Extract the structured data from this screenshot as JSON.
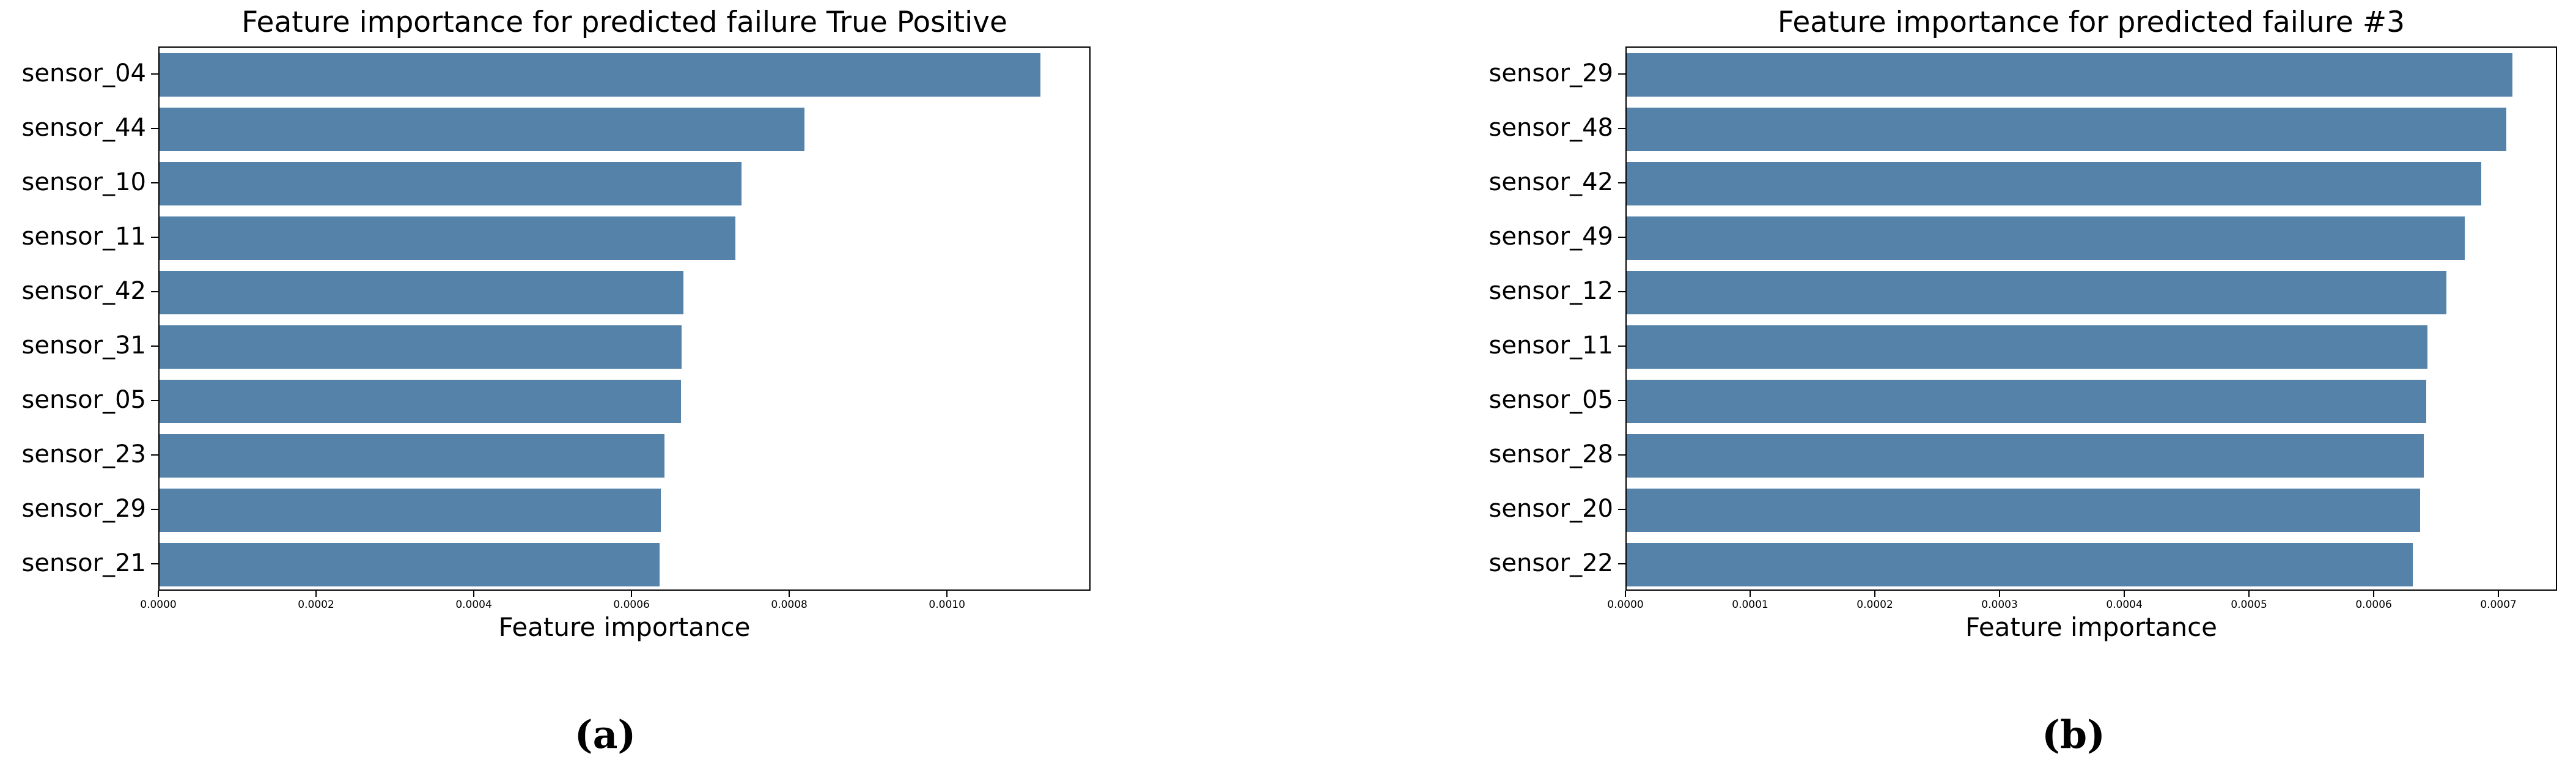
{
  "page": {
    "background": "#ffffff",
    "text_color": "#000000",
    "spine_color": "#000000"
  },
  "chart_data": [
    {
      "type": "bar",
      "orientation": "horizontal",
      "title": "Feature importance for predicted failure True Positive",
      "xlabel": "Feature importance",
      "caption": "(a)",
      "bar_color": "#5482a8",
      "grid": false,
      "legend": null,
      "categories": [
        "sensor_04",
        "sensor_44",
        "sensor_10",
        "sensor_11",
        "sensor_42",
        "sensor_31",
        "sensor_05",
        "sensor_23",
        "sensor_29",
        "sensor_21"
      ],
      "values": [
        0.00112,
        0.00082,
        0.00074,
        0.000732,
        0.000666,
        0.000664,
        0.000663,
        0.000642,
        0.000637,
        0.000636
      ],
      "xlim": [
        0,
        0.001182
      ],
      "xticks": [
        0.0,
        0.0002,
        0.0004,
        0.0006,
        0.0008,
        0.001
      ],
      "xtick_labels": [
        "0.0000",
        "0.0002",
        "0.0004",
        "0.0006",
        "0.0008",
        "0.0010"
      ]
    },
    {
      "type": "bar",
      "orientation": "horizontal",
      "title": "Feature importance for predicted failure #3",
      "xlabel": "Feature importance",
      "caption": "(b)",
      "bar_color": "#5482a8",
      "grid": false,
      "legend": null,
      "categories": [
        "sensor_29",
        "sensor_48",
        "sensor_42",
        "sensor_49",
        "sensor_12",
        "sensor_11",
        "sensor_05",
        "sensor_28",
        "sensor_20",
        "sensor_22"
      ],
      "values": [
        0.000712,
        0.000707,
        0.000687,
        0.000674,
        0.000659,
        0.000644,
        0.000643,
        0.000641,
        0.000638,
        0.000632
      ],
      "xlim": [
        0,
        0.000747
      ],
      "xticks": [
        0.0,
        0.0001,
        0.0002,
        0.0003,
        0.0004,
        0.0005,
        0.0006,
        0.0007
      ],
      "xtick_labels": [
        "0.0000",
        "0.0001",
        "0.0002",
        "0.0003",
        "0.0004",
        "0.0005",
        "0.0006",
        "0.0007"
      ]
    }
  ]
}
